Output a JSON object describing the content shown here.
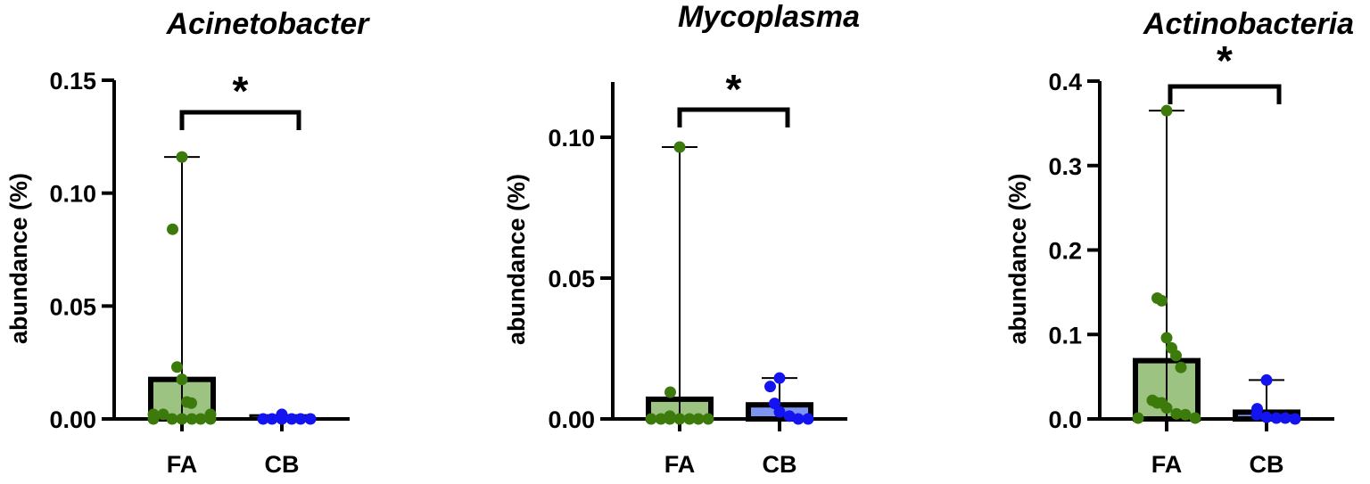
{
  "colors": {
    "fa_point": "#3d7a0c",
    "fa_bar_fill": "#9dc383",
    "cb_point": "#1414f0",
    "cb_bar_fill": "#7d95f0",
    "axis": "#000000"
  },
  "chart_data": [
    {
      "type": "bar",
      "title": "Acinetobacter",
      "xlabel": "",
      "ylabel": "abundance (%)",
      "categories": [
        "FA",
        "CB"
      ],
      "ylim": [
        0,
        0.15
      ],
      "yticks": [
        "0.00",
        "0.05",
        "0.10",
        "0.15"
      ],
      "ytick_values": [
        0,
        0.05,
        0.1,
        0.15
      ],
      "significance": "*",
      "series": [
        {
          "name": "FA",
          "bar": 0.0175,
          "range_max": 0.116,
          "points": [
            0.116,
            0.084,
            0.023,
            0.0175,
            0.0075,
            0.007,
            0.002,
            0.002,
            0.002,
            0,
            0,
            0,
            0,
            0,
            0
          ]
        },
        {
          "name": "CB",
          "bar": 0.0015,
          "range_max": 0.0015,
          "points": [
            0.002,
            0,
            0,
            0,
            0,
            0,
            0
          ]
        }
      ]
    },
    {
      "type": "bar",
      "title": "Mycoplasma",
      "xlabel": "",
      "ylabel": "abundance (%)",
      "categories": [
        "FA",
        "CB"
      ],
      "ylim": [
        0,
        0.12
      ],
      "yticks": [
        "0.00",
        "0.05",
        "0.10"
      ],
      "ytick_values": [
        0,
        0.05,
        0.1
      ],
      "significance": "*",
      "series": [
        {
          "name": "FA",
          "bar": 0.007,
          "range_max": 0.0965,
          "points": [
            0.0965,
            0.0095,
            0.001,
            0,
            0,
            0,
            0,
            0,
            0,
            0
          ]
        },
        {
          "name": "CB",
          "bar": 0.005,
          "range_max": 0.0145,
          "points": [
            0.0145,
            0.0115,
            0.0055,
            0.0025,
            0.001,
            0,
            0
          ]
        }
      ]
    },
    {
      "type": "bar",
      "title": "Actinobacteria",
      "xlabel": "",
      "ylabel": "abundance (%)",
      "categories": [
        "FA",
        "CB"
      ],
      "ylim": [
        0,
        0.4
      ],
      "yticks": [
        "0.0",
        "0.1",
        "0.2",
        "0.3",
        "0.4"
      ],
      "ytick_values": [
        0,
        0.1,
        0.2,
        0.3,
        0.4
      ],
      "significance": "*",
      "series": [
        {
          "name": "FA",
          "bar": 0.069,
          "range_max": 0.365,
          "points": [
            0.365,
            0.143,
            0.14,
            0.096,
            0.084,
            0.075,
            0.061,
            0.022,
            0.019,
            0.019,
            0.013,
            0.006,
            0.005,
            0.001,
            0.001
          ]
        },
        {
          "name": "CB",
          "bar": 0.008,
          "range_max": 0.046,
          "points": [
            0.046,
            0.012,
            0.005,
            0.002,
            0.001,
            0.001,
            0
          ]
        }
      ]
    }
  ]
}
